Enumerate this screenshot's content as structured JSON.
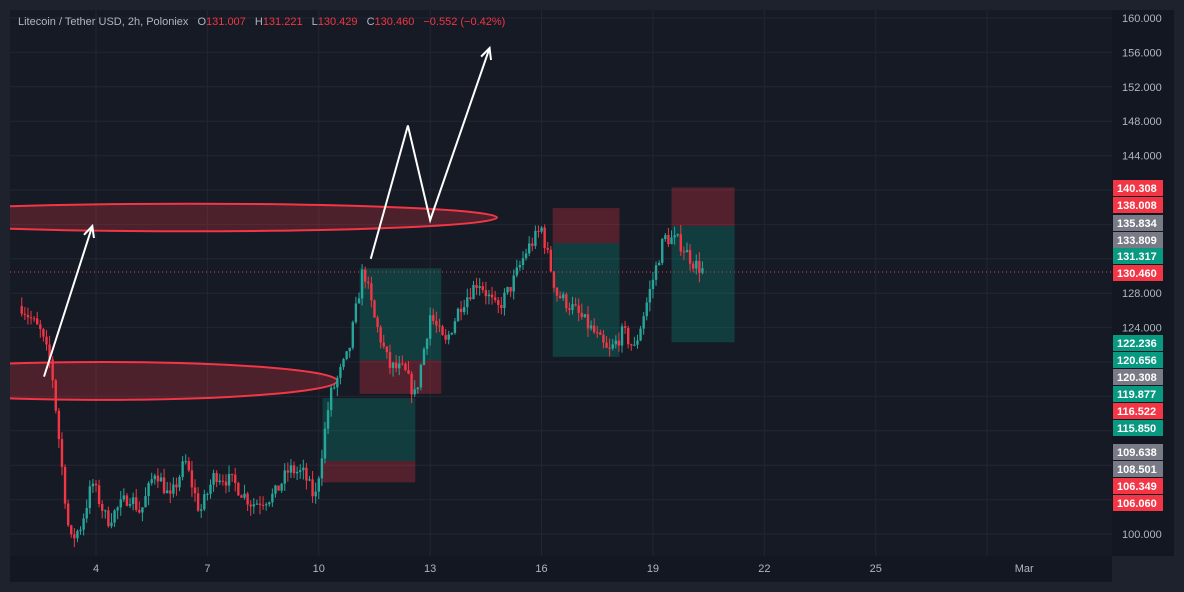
{
  "header": {
    "symbol": "Litecoin / Tether USD, 2h, Poloniex",
    "o_label": "O",
    "o_value": "131.007",
    "h_label": "H",
    "h_value": "131.221",
    "l_label": "L",
    "l_value": "130.429",
    "c_label": "C",
    "c_value": "130.460",
    "change": "−0.552 (−0.42%)"
  },
  "colors": {
    "up": "#26a69a",
    "down": "#f23645",
    "background": "#161a25",
    "axis_text": "#b2b5be"
  },
  "chart_data": {
    "type": "candlestick",
    "xlabel": "",
    "ylabel": "",
    "ylim": [
      98.5,
      161
    ],
    "x_ticks": [
      "4",
      "7",
      "10",
      "13",
      "16",
      "19",
      "22",
      "25",
      "Mar"
    ],
    "y_ticks": [
      "160.000",
      "156.000",
      "152.000",
      "148.000",
      "144.000",
      "128.000",
      "124.000",
      "100.000"
    ],
    "price_tags": [
      {
        "label": "140.308",
        "value": 140.308,
        "color": "#f23645"
      },
      {
        "label": "138.008",
        "value": 138.008,
        "color": "#f23645"
      },
      {
        "label": "135.834",
        "value": 135.834,
        "color": "#787b86"
      },
      {
        "label": "133.809",
        "value": 133.809,
        "color": "#787b86"
      },
      {
        "label": "131.317",
        "value": 131.317,
        "color": "#089981"
      },
      {
        "label": "130.460",
        "value": 130.46,
        "color": "#f23645"
      },
      {
        "label": "122.236",
        "value": 122.236,
        "color": "#089981"
      },
      {
        "label": "120.656",
        "value": 120.656,
        "color": "#089981"
      },
      {
        "label": "120.308",
        "value": 120.308,
        "color": "#787b86"
      },
      {
        "label": "119.877",
        "value": 119.877,
        "color": "#089981"
      },
      {
        "label": "116.522",
        "value": 116.522,
        "color": "#f23645"
      },
      {
        "label": "115.850",
        "value": 115.85,
        "color": "#089981"
      },
      {
        "label": "109.638",
        "value": 109.638,
        "color": "#787b86"
      },
      {
        "label": "108.501",
        "value": 108.501,
        "color": "#787b86"
      },
      {
        "label": "106.349",
        "value": 106.349,
        "color": "#f23645"
      },
      {
        "label": "106.060",
        "value": 106.06,
        "color": "#f23645"
      }
    ],
    "last_price": 130.46,
    "anchors": [
      {
        "day": 2.0,
        "price": 126.5
      },
      {
        "day": 2.5,
        "price": 123.5
      },
      {
        "day": 2.8,
        "price": 119.5
      },
      {
        "day": 3.1,
        "price": 107.0
      },
      {
        "day": 3.3,
        "price": 99.0
      },
      {
        "day": 3.6,
        "price": 101.0
      },
      {
        "day": 3.9,
        "price": 106.0
      },
      {
        "day": 4.3,
        "price": 101.5
      },
      {
        "day": 4.9,
        "price": 104.5
      },
      {
        "day": 5.2,
        "price": 102.5
      },
      {
        "day": 5.6,
        "price": 107.5
      },
      {
        "day": 6.0,
        "price": 104.0
      },
      {
        "day": 6.4,
        "price": 108.5
      },
      {
        "day": 6.8,
        "price": 102.5
      },
      {
        "day": 7.2,
        "price": 107.0
      },
      {
        "day": 7.7,
        "price": 106.0
      },
      {
        "day": 8.2,
        "price": 103.5
      },
      {
        "day": 8.8,
        "price": 104.5
      },
      {
        "day": 9.2,
        "price": 107.5
      },
      {
        "day": 9.6,
        "price": 107.0
      },
      {
        "day": 9.9,
        "price": 104.0
      },
      {
        "day": 10.3,
        "price": 116.0
      },
      {
        "day": 10.8,
        "price": 121.0
      },
      {
        "day": 11.2,
        "price": 131.0
      },
      {
        "day": 11.5,
        "price": 125.0
      },
      {
        "day": 11.9,
        "price": 119.5
      },
      {
        "day": 12.3,
        "price": 119.0
      },
      {
        "day": 12.6,
        "price": 116.0
      },
      {
        "day": 13.0,
        "price": 125.5
      },
      {
        "day": 13.4,
        "price": 122.0
      },
      {
        "day": 13.8,
        "price": 126.5
      },
      {
        "day": 14.3,
        "price": 129.5
      },
      {
        "day": 14.8,
        "price": 126.0
      },
      {
        "day": 15.2,
        "price": 129.0
      },
      {
        "day": 15.6,
        "price": 133.0
      },
      {
        "day": 16.0,
        "price": 135.5
      },
      {
        "day": 16.4,
        "price": 128.0
      },
      {
        "day": 16.9,
        "price": 126.0
      },
      {
        "day": 17.4,
        "price": 123.5
      },
      {
        "day": 17.8,
        "price": 121.0
      },
      {
        "day": 18.2,
        "price": 123.5
      },
      {
        "day": 18.5,
        "price": 121.5
      },
      {
        "day": 18.9,
        "price": 128.0
      },
      {
        "day": 19.3,
        "price": 134.5
      },
      {
        "day": 19.7,
        "price": 134.0
      },
      {
        "day": 20.1,
        "price": 131.5
      },
      {
        "day": 20.4,
        "price": 130.46
      }
    ],
    "zones": [
      {
        "name": "position-1-profit",
        "x0": 11.1,
        "x1": 13.3,
        "y0": 120.2,
        "y1": 130.9,
        "kind": "profit"
      },
      {
        "name": "position-1-loss",
        "x0": 11.1,
        "x1": 13.3,
        "y0": 116.3,
        "y1": 120.2,
        "kind": "loss"
      },
      {
        "name": "position-2-profit",
        "x0": 10.1,
        "x1": 12.6,
        "y0": 108.5,
        "y1": 115.8,
        "kind": "profit"
      },
      {
        "name": "position-2-loss",
        "x0": 10.1,
        "x1": 12.6,
        "y0": 106.0,
        "y1": 108.5,
        "kind": "loss"
      },
      {
        "name": "position-3-loss",
        "x0": 16.3,
        "x1": 18.1,
        "y0": 133.8,
        "y1": 137.9,
        "kind": "loss"
      },
      {
        "name": "position-3-profit",
        "x0": 16.3,
        "x1": 18.1,
        "y0": 120.6,
        "y1": 133.8,
        "kind": "profit"
      },
      {
        "name": "position-4-loss",
        "x0": 19.5,
        "x1": 21.2,
        "y0": 135.8,
        "y1": 140.3,
        "kind": "loss"
      },
      {
        "name": "position-4-profit",
        "x0": 19.5,
        "x1": 21.2,
        "y0": 122.3,
        "y1": 135.8,
        "kind": "profit"
      }
    ],
    "ellipses": [
      {
        "name": "resistance-ellipse",
        "cx": 6.5,
        "cy": 136.8,
        "rx": 8.3,
        "ry": 1.6
      },
      {
        "name": "support-ellipse",
        "cx": 4.2,
        "cy": 117.8,
        "rx": 6.3,
        "ry": 2.2
      }
    ],
    "arrows": [
      {
        "name": "arrow-up-left",
        "points": [
          [
            2.6,
            118.3
          ],
          [
            3.9,
            135.8
          ]
        ]
      },
      {
        "name": "arrow-projection",
        "points": [
          [
            11.4,
            132.0
          ],
          [
            12.4,
            147.5
          ],
          [
            13.0,
            136.5
          ],
          [
            14.6,
            156.5
          ]
        ]
      }
    ]
  }
}
